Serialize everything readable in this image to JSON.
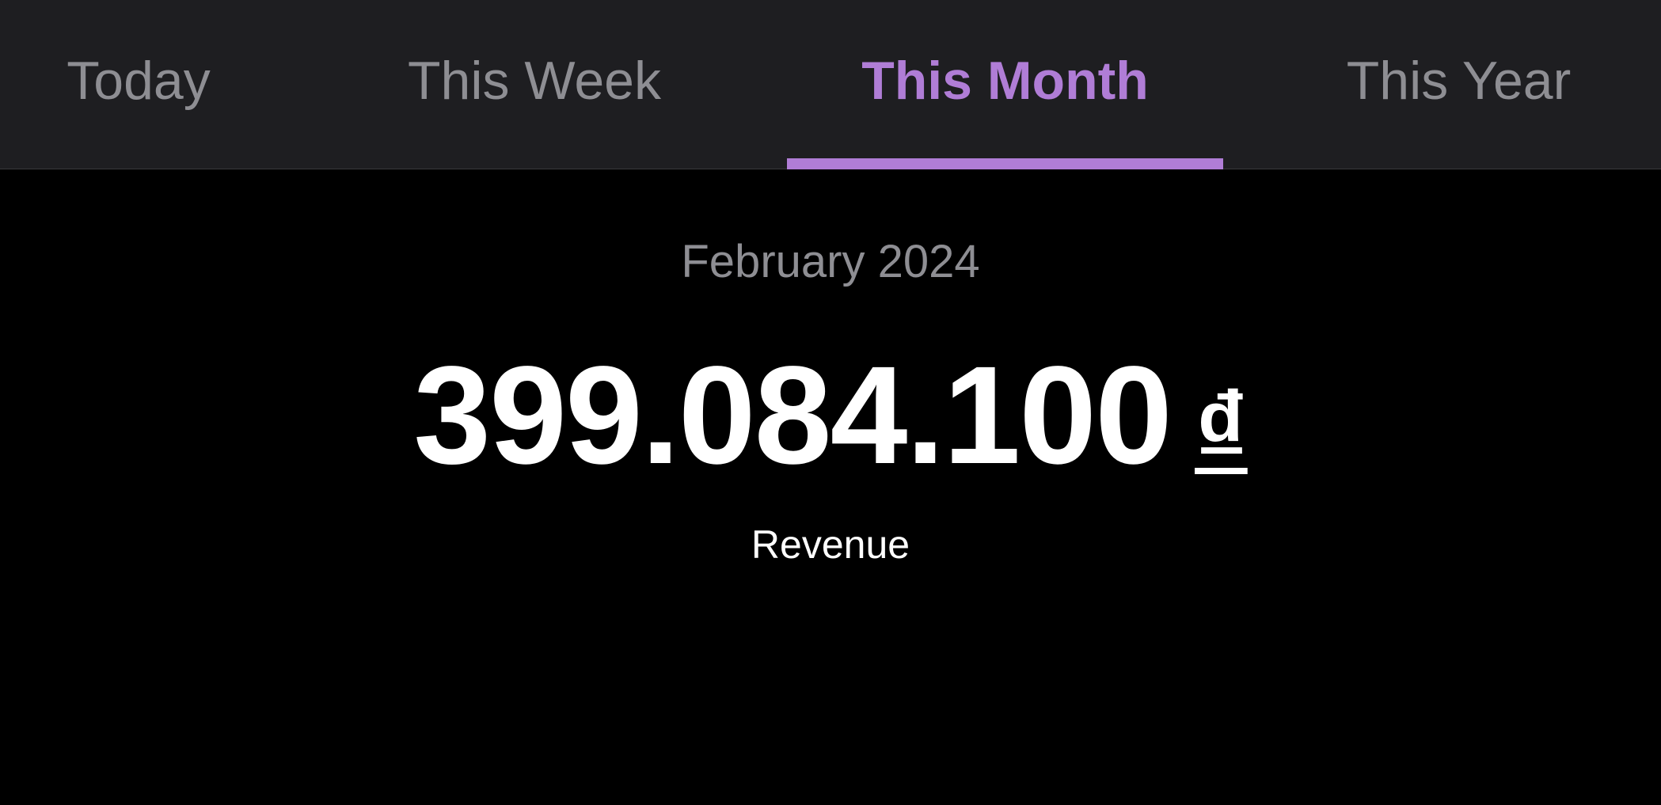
{
  "tabs": [
    {
      "label": "Today",
      "active": false
    },
    {
      "label": "This Week",
      "active": false
    },
    {
      "label": "This Month",
      "active": true
    },
    {
      "label": "This Year",
      "active": false
    }
  ],
  "summary": {
    "period": "February 2024",
    "amount": "399.084.100",
    "currency": "₫",
    "label": "Revenue"
  },
  "colors": {
    "accent": "#b07dd6",
    "tab_bar_bg": "#1e1e21",
    "inactive_text": "#8e8e93",
    "background": "#000000",
    "primary_text": "#ffffff"
  }
}
